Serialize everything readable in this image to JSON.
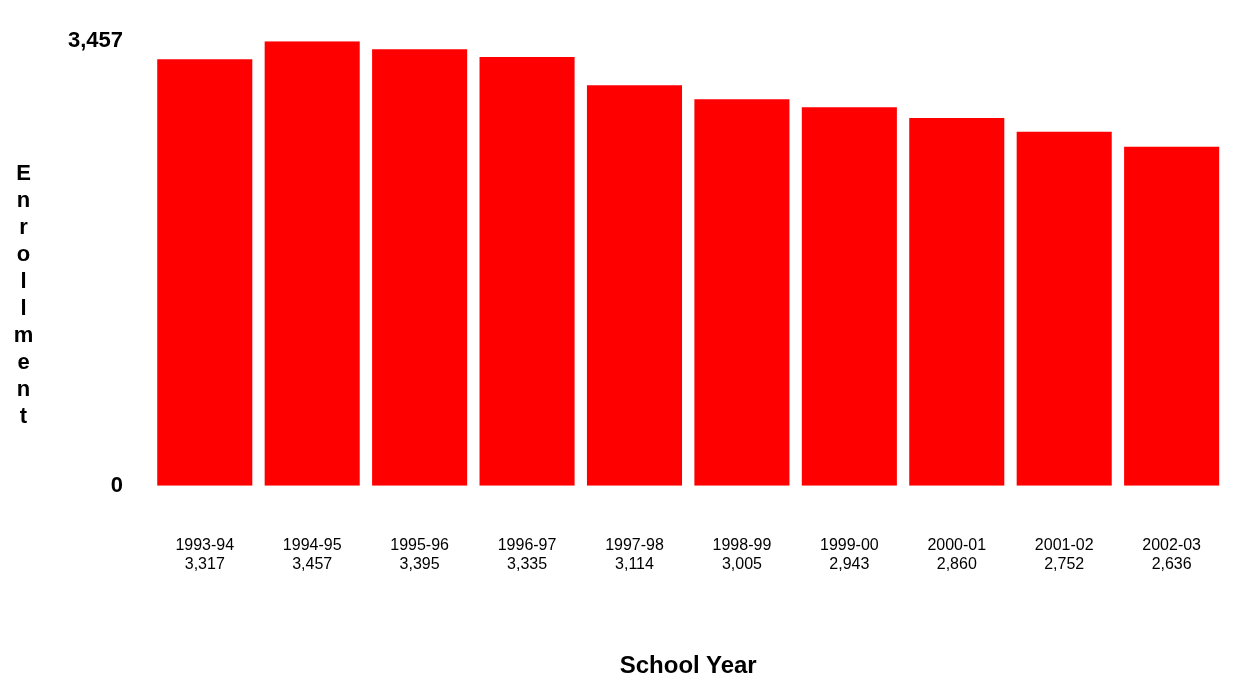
{
  "chart_data": {
    "type": "bar",
    "xlabel": "School Year",
    "ylabel": "Enrollment",
    "categories": [
      "1993-94",
      "1994-95",
      "1995-96",
      "1996-97",
      "1997-98",
      "1998-99",
      "1999-00",
      "2000-01",
      "2001-02",
      "2002-03"
    ],
    "values": [
      3317,
      3457,
      3395,
      3335,
      3114,
      3005,
      2943,
      2860,
      2752,
      2636
    ],
    "value_labels": [
      "3,317",
      "3,457",
      "3,395",
      "3,335",
      "3,114",
      "3,005",
      "2,943",
      "2,860",
      "2,752",
      "2,636"
    ],
    "color": "#fe0000",
    "ylim": [
      0,
      3457
    ],
    "yticks": [
      0,
      {
        "value": 3457,
        "label": "3,457"
      }
    ],
    "grid": false,
    "legend": false
  }
}
